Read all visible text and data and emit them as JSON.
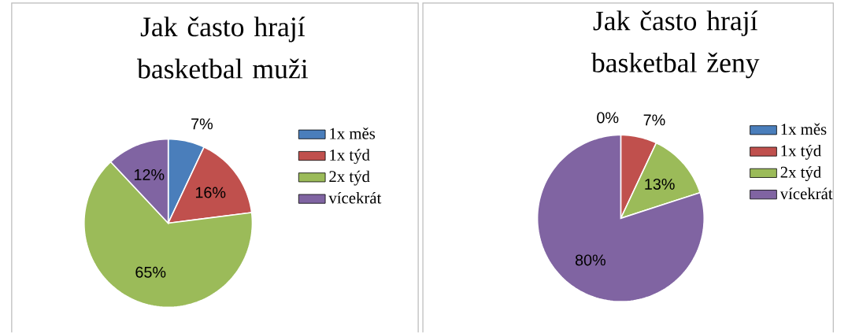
{
  "chart_data": [
    {
      "type": "pie",
      "title": "Jak často hrají basketbal muži",
      "categories": [
        "1x měs",
        "1x týd",
        "2x týd",
        "vícekrát"
      ],
      "values": [
        7,
        16,
        65,
        12
      ],
      "value_labels": [
        "7%",
        "16%",
        "65%",
        "12%"
      ],
      "colors": [
        "#4a7ebb",
        "#c0504d",
        "#9bbb59",
        "#8064a2"
      ],
      "legend": "right"
    },
    {
      "type": "pie",
      "title": "Jak často hrají basketbal ženy",
      "categories": [
        "1x měs",
        "1x týd",
        "2x týd",
        "vícekrát"
      ],
      "values": [
        0,
        7,
        13,
        80
      ],
      "value_labels": [
        "0%",
        "7%",
        "13%",
        "80%"
      ],
      "colors": [
        "#4a7ebb",
        "#c0504d",
        "#9bbb59",
        "#8064a2"
      ],
      "legend": "right"
    }
  ]
}
